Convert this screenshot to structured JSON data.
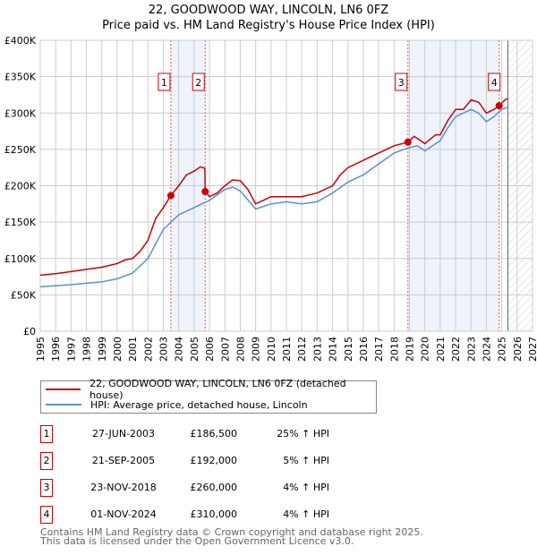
{
  "chart_data": {
    "type": "line",
    "title": "22, GOODWOOD WAY, LINCOLN, LN6 0FZ",
    "subtitle": "Price paid vs. HM Land Registry's House Price Index (HPI)",
    "xlim": [
      1995,
      2027
    ],
    "ylim": [
      0,
      400000
    ],
    "grid": true,
    "y_ticks": [
      {
        "v": 0,
        "label": "£0"
      },
      {
        "v": 50000,
        "label": "£50K"
      },
      {
        "v": 100000,
        "label": "£100K"
      },
      {
        "v": 150000,
        "label": "£150K"
      },
      {
        "v": 200000,
        "label": "£200K"
      },
      {
        "v": 250000,
        "label": "£250K"
      },
      {
        "v": 300000,
        "label": "£300K"
      },
      {
        "v": 350000,
        "label": "£350K"
      },
      {
        "v": 400000,
        "label": "£400K"
      }
    ],
    "x_ticks": [
      "1995",
      "1996",
      "1997",
      "1998",
      "1999",
      "2000",
      "2001",
      "2002",
      "2003",
      "2004",
      "2005",
      "2006",
      "2007",
      "2008",
      "2009",
      "2010",
      "2011",
      "2012",
      "2013",
      "2014",
      "2015",
      "2016",
      "2017",
      "2018",
      "2019",
      "2020",
      "2021",
      "2022",
      "2023",
      "2024",
      "2025",
      "2026",
      "2027"
    ],
    "shaded_ranges": [
      [
        2003.49,
        2005.72
      ],
      [
        2018.9,
        2024.83
      ]
    ],
    "forecast_start": 2025.4,
    "series": [
      {
        "name": "22, GOODWOOD WAY, LINCOLN, LN6 0FZ (detached house)",
        "color": "#cc0000",
        "points": [
          [
            1995,
            77000
          ],
          [
            1996,
            79000
          ],
          [
            1997,
            82000
          ],
          [
            1998,
            85000
          ],
          [
            1999,
            88000
          ],
          [
            2000,
            93000
          ],
          [
            2000.5,
            98000
          ],
          [
            2001,
            100000
          ],
          [
            2001.5,
            110000
          ],
          [
            2002,
            125000
          ],
          [
            2002.5,
            155000
          ],
          [
            2003,
            170000
          ],
          [
            2003.49,
            186500
          ],
          [
            2004,
            200000
          ],
          [
            2004.5,
            215000
          ],
          [
            2005,
            220000
          ],
          [
            2005.4,
            226000
          ],
          [
            2005.7,
            224000
          ],
          [
            2005.72,
            192000
          ],
          [
            2006,
            185000
          ],
          [
            2006.5,
            190000
          ],
          [
            2007,
            200000
          ],
          [
            2007.5,
            208000
          ],
          [
            2008,
            207000
          ],
          [
            2008.5,
            195000
          ],
          [
            2009,
            175000
          ],
          [
            2009.5,
            180000
          ],
          [
            2010,
            185000
          ],
          [
            2011,
            185000
          ],
          [
            2012,
            185000
          ],
          [
            2013,
            190000
          ],
          [
            2014,
            200000
          ],
          [
            2014.5,
            215000
          ],
          [
            2015,
            225000
          ],
          [
            2016,
            235000
          ],
          [
            2017,
            245000
          ],
          [
            2018,
            255000
          ],
          [
            2018.9,
            260000
          ],
          [
            2019.3,
            268000
          ],
          [
            2020,
            258000
          ],
          [
            2020.7,
            270000
          ],
          [
            2021,
            270000
          ],
          [
            2021.5,
            290000
          ],
          [
            2022,
            305000
          ],
          [
            2022.5,
            305000
          ],
          [
            2023,
            318000
          ],
          [
            2023.5,
            315000
          ],
          [
            2024,
            300000
          ],
          [
            2024.5,
            305000
          ],
          [
            2024.83,
            310000
          ],
          [
            2025.2,
            318000
          ],
          [
            2025.4,
            320000
          ]
        ]
      },
      {
        "name": "HPI: Average price, detached house, Lincoln",
        "color": "#5b8fd4",
        "points": [
          [
            1995,
            61000
          ],
          [
            1997,
            64000
          ],
          [
            1999,
            68000
          ],
          [
            2000,
            72000
          ],
          [
            2001,
            80000
          ],
          [
            2002,
            100000
          ],
          [
            2002.5,
            120000
          ],
          [
            2003,
            140000
          ],
          [
            2003.5,
            150000
          ],
          [
            2004,
            160000
          ],
          [
            2005,
            170000
          ],
          [
            2005.5,
            175000
          ],
          [
            2006,
            180000
          ],
          [
            2007,
            195000
          ],
          [
            2007.5,
            198000
          ],
          [
            2008,
            193000
          ],
          [
            2009,
            168000
          ],
          [
            2010,
            175000
          ],
          [
            2011,
            178000
          ],
          [
            2012,
            175000
          ],
          [
            2013,
            178000
          ],
          [
            2014,
            190000
          ],
          [
            2015,
            205000
          ],
          [
            2016,
            215000
          ],
          [
            2017,
            230000
          ],
          [
            2018,
            245000
          ],
          [
            2018.9,
            252000
          ],
          [
            2019.5,
            255000
          ],
          [
            2020,
            248000
          ],
          [
            2021,
            262000
          ],
          [
            2021.5,
            280000
          ],
          [
            2022,
            295000
          ],
          [
            2023,
            305000
          ],
          [
            2023.5,
            300000
          ],
          [
            2024,
            288000
          ],
          [
            2024.5,
            295000
          ],
          [
            2025,
            305000
          ],
          [
            2025.4,
            308000
          ]
        ]
      }
    ],
    "sales": [
      {
        "n": "1",
        "x": 2003.49,
        "price": 186500,
        "date": "27-JUN-2003",
        "price_label": "£186,500",
        "hpi": "25% ↑ HPI"
      },
      {
        "n": "2",
        "x": 2005.72,
        "price": 192000,
        "date": "21-SEP-2005",
        "price_label": "£192,000",
        "hpi": "5% ↑ HPI"
      },
      {
        "n": "3",
        "x": 2018.9,
        "price": 260000,
        "date": "23-NOV-2018",
        "price_label": "£260,000",
        "hpi": "4% ↑ HPI"
      },
      {
        "n": "4",
        "x": 2024.83,
        "price": 310000,
        "date": "01-NOV-2024",
        "price_label": "£310,000",
        "hpi": "4% ↑ HPI"
      }
    ]
  },
  "footer": {
    "line1": "Contains HM Land Registry data © Crown copyright and database right 2025.",
    "line2": "This data is licensed under the Open Government Licence v3.0."
  }
}
